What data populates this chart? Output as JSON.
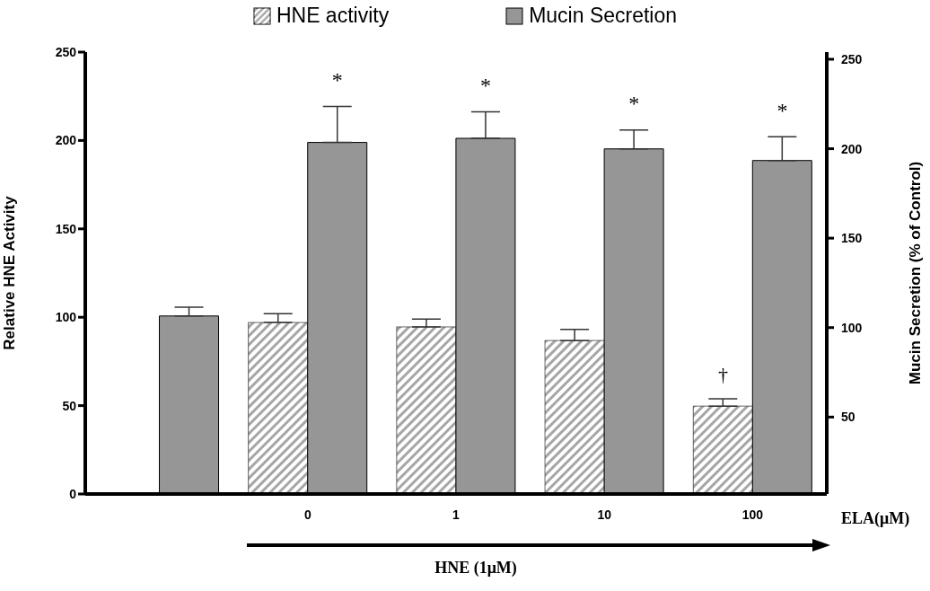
{
  "chart_data": {
    "type": "bar",
    "categories": [
      null,
      "0",
      "1",
      "10",
      "100"
    ],
    "xlabel": "ELA(μM)",
    "ylabel": "Relative HNE Activity",
    "y2label": "Mucin Secretion (% of Control)",
    "series": [
      {
        "name": "HNE activity",
        "color": "#a6a6a6",
        "values": [
          null,
          97,
          94.5,
          86.8,
          49.7
        ],
        "errors": [
          null,
          [
            97,
            102
          ],
          [
            94.5,
            99
          ],
          [
            86.8,
            93.1
          ],
          [
            49.7,
            53.8
          ]
        ]
      },
      {
        "name": "Mucin Secretion",
        "color": "#969696",
        "axis": "y2",
        "values": [
          106.5,
          203.5,
          205.8,
          199.9,
          193.4
        ],
        "errors": [
          [
            106.5,
            111.4
          ],
          [
            203.5,
            223.6
          ],
          [
            205.8,
            220.6
          ],
          [
            199.9,
            210.4
          ],
          [
            193.4,
            206.7
          ]
        ]
      }
    ],
    "ylim": [
      0,
      250
    ],
    "yticks": [
      0,
      50,
      100,
      150,
      200,
      250
    ],
    "y2lim": [
      7,
      254
    ],
    "y2ticks": [
      50,
      100,
      150,
      200,
      250
    ],
    "grid": false,
    "legend": "top",
    "annotations": [
      "*",
      "*",
      "*",
      "*",
      {
        "text": "†",
        "x": "100",
        "y": 68
      },
      "HNE (1μM)"
    ]
  }
}
